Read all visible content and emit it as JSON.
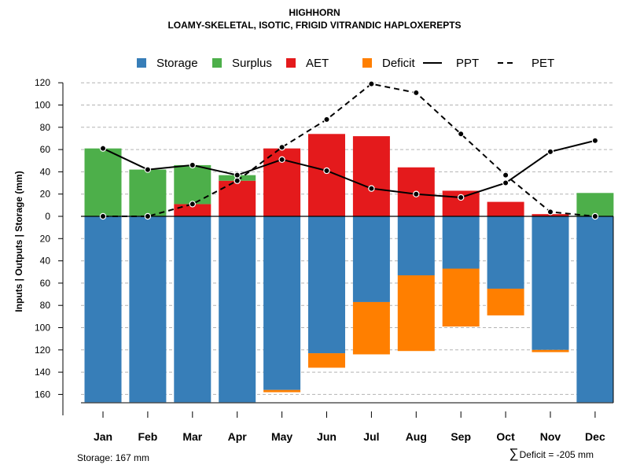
{
  "chart_data": {
    "type": "bar",
    "title": "HIGHHORN",
    "subtitle": "LOAMY-SKELETAL, ISOTIC, FRIGID VITRANDIC HAPLOXEREPTS",
    "ylabel": "Inputs | Outputs | Storage    (mm)",
    "ylim": [
      -167,
      125
    ],
    "ytick_values": [
      120,
      100,
      80,
      60,
      40,
      20,
      0,
      -20,
      -40,
      -60,
      -80,
      -100,
      -120,
      -140,
      -160
    ],
    "ytick_labels": [
      "120",
      "100",
      "80",
      "60",
      "40",
      "20",
      "0",
      "20",
      "40",
      "60",
      "80",
      "100",
      "120",
      "140",
      "160"
    ],
    "categories": [
      "Jan",
      "Feb",
      "Mar",
      "Apr",
      "May",
      "Jun",
      "Jul",
      "Aug",
      "Sep",
      "Oct",
      "Nov",
      "Dec"
    ],
    "series": [
      {
        "name": "Storage",
        "kind": "bar",
        "color": "#377EB8",
        "values": [
          -167,
          -167,
          -167,
          -167,
          -156,
          -123,
          -77,
          -53,
          -47,
          -65,
          -120,
          -167
        ]
      },
      {
        "name": "Surplus",
        "kind": "bar",
        "color": "#4DAF4A",
        "values": [
          61,
          42,
          35,
          5,
          0,
          0,
          0,
          0,
          0,
          0,
          0,
          21
        ]
      },
      {
        "name": "AET",
        "kind": "bar",
        "color": "#E41A1C",
        "values": [
          0,
          0,
          11,
          32,
          61,
          74,
          72,
          44,
          23,
          13,
          2,
          0
        ]
      },
      {
        "name": "Deficit",
        "kind": "bar",
        "color": "#FF7F00",
        "values": [
          0,
          0,
          0,
          0,
          -2,
          -13,
          -47,
          -68,
          -52,
          -24,
          -2,
          0
        ]
      },
      {
        "name": "PPT",
        "kind": "line",
        "style": "solid",
        "color": "#000000",
        "values": [
          61,
          42,
          46,
          37,
          51,
          41,
          25,
          20,
          17,
          30,
          58,
          68
        ]
      },
      {
        "name": "PET",
        "kind": "line",
        "style": "dashed",
        "color": "#000000",
        "values": [
          0,
          0,
          11,
          32,
          62,
          87,
          119,
          111,
          74,
          37,
          4,
          0
        ]
      }
    ],
    "legend": {
      "position": "top",
      "items": [
        {
          "label": "Storage",
          "swatch": "box",
          "color": "#377EB8"
        },
        {
          "label": "Surplus",
          "swatch": "box",
          "color": "#4DAF4A"
        },
        {
          "label": "AET",
          "swatch": "box",
          "color": "#E41A1C"
        },
        {
          "label": "Deficit",
          "swatch": "box",
          "color": "#FF7F00"
        },
        {
          "label": "PPT",
          "swatch": "line-solid",
          "color": "#000000"
        },
        {
          "label": "PET",
          "swatch": "line-dashed",
          "color": "#000000"
        }
      ]
    },
    "grid": true,
    "footer_left": "Storage: 167 mm",
    "footer_right_symbol": "∑",
    "footer_right": "Deficit = -205 mm"
  }
}
